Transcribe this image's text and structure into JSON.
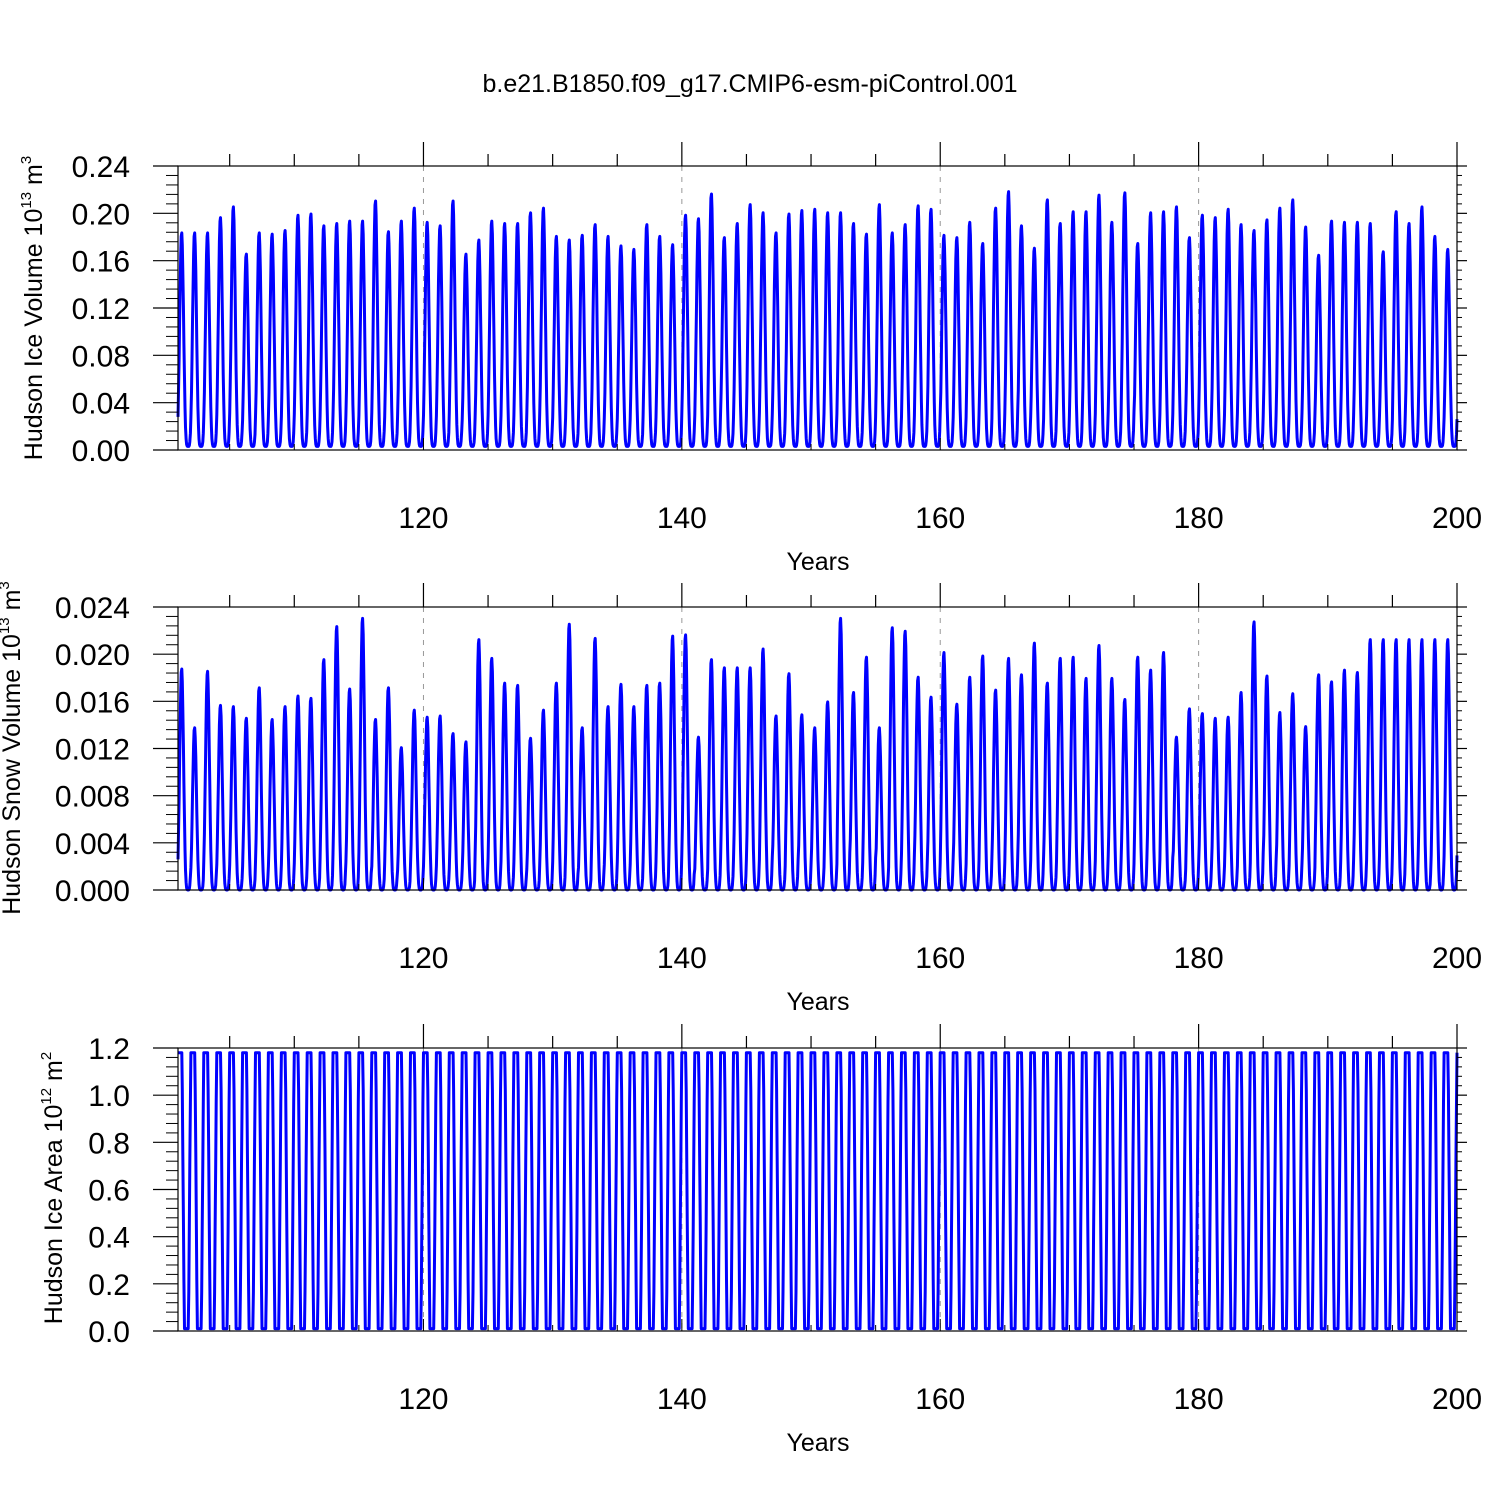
{
  "figure": {
    "title": "b.e21.B1850.f09_g17.CMIP6-esm-piControl.001"
  },
  "chart_data": [
    {
      "type": "line",
      "ylabel_parts": [
        "Hudson Ice Volume 10",
        "13",
        " m",
        "3"
      ],
      "xlabel": "Years",
      "xlim": [
        101,
        200
      ],
      "ylim": [
        0,
        0.24
      ],
      "x_ticks": [
        120,
        140,
        160,
        180,
        200
      ],
      "y_ticks": [
        "0.00",
        "0.04",
        "0.08",
        "0.12",
        "0.16",
        "0.20",
        "0.24"
      ],
      "grid": "dashed vertical lines at 120, 140, 160, 180",
      "series": [
        {
          "color": "#0000ff",
          "annual_min": 0.003,
          "annual_max": [
            0.184,
            0.184,
            0.184,
            0.197,
            0.206,
            0.166,
            0.184,
            0.183,
            0.186,
            0.199,
            0.2,
            0.19,
            0.192,
            0.194,
            0.194,
            0.211,
            0.185,
            0.194,
            0.205,
            0.193,
            0.19,
            0.211,
            0.166,
            0.178,
            0.194,
            0.192,
            0.192,
            0.201,
            0.205,
            0.181,
            0.178,
            0.182,
            0.191,
            0.181,
            0.173,
            0.17,
            0.191,
            0.181,
            0.174,
            0.199,
            0.196,
            0.217,
            0.18,
            0.192,
            0.208,
            0.201,
            0.184,
            0.2,
            0.203,
            0.204,
            0.201,
            0.201,
            0.192,
            0.183,
            0.208,
            0.184,
            0.191,
            0.207,
            0.204,
            0.182,
            0.18,
            0.193,
            0.175,
            0.205,
            0.219,
            0.19,
            0.171,
            0.212,
            0.192,
            0.202,
            0.202,
            0.216,
            0.193,
            0.218,
            0.175,
            0.201,
            0.202,
            0.206,
            0.18,
            0.199,
            0.197,
            0.204,
            0.191,
            0.186,
            0.195,
            0.205,
            0.212,
            0.189,
            0.165,
            0.194,
            0.193,
            0.193,
            0.192,
            0.168,
            0.202,
            0.192,
            0.206,
            0.181,
            0.17
          ]
        }
      ]
    },
    {
      "type": "line",
      "ylabel_parts": [
        "Hudson Snow Volume 10",
        "13",
        " m",
        "3"
      ],
      "xlabel": "Years",
      "xlim": [
        101,
        200
      ],
      "ylim": [
        0,
        0.024
      ],
      "x_ticks": [
        120,
        140,
        160,
        180,
        200
      ],
      "y_ticks": [
        "0.000",
        "0.004",
        "0.008",
        "0.012",
        "0.016",
        "0.020",
        "0.024"
      ],
      "grid": "dashed vertical lines at 120, 140, 160, 180",
      "series": [
        {
          "color": "#0000ff",
          "annual_min": 0.0,
          "annual_max": [
            0.0188,
            0.0138,
            0.0186,
            0.0157,
            0.0156,
            0.0146,
            0.0172,
            0.0145,
            0.0156,
            0.0165,
            0.0163,
            0.0196,
            0.0224,
            0.0171,
            0.0231,
            0.0145,
            0.0172,
            0.0121,
            0.0153,
            0.0147,
            0.0148,
            0.0133,
            0.0126,
            0.0213,
            0.0197,
            0.0176,
            0.0174,
            0.0129,
            0.0153,
            0.0176,
            0.0226,
            0.0138,
            0.0214,
            0.0156,
            0.0175,
            0.0156,
            0.0174,
            0.0176,
            0.0216,
            0.0217,
            0.013,
            0.0196,
            0.0189,
            0.0189,
            0.0189,
            0.0205,
            0.0148,
            0.0184,
            0.0149,
            0.0138,
            0.016,
            0.0231,
            0.0168,
            0.0198,
            0.0138,
            0.0223,
            0.022,
            0.0181,
            0.0164,
            0.0202,
            0.0158,
            0.0181,
            0.0199,
            0.017,
            0.0197,
            0.0183,
            0.021,
            0.0176,
            0.0197,
            0.0198,
            0.018,
            0.0208,
            0.018,
            0.0162,
            0.0198,
            0.0187,
            0.0202,
            0.013,
            0.0154,
            0.015,
            0.0146,
            0.0147,
            0.0168,
            0.0228,
            0.0182,
            0.0151,
            0.0167,
            0.0139,
            0.0183,
            0.0177,
            0.0187,
            0.0185,
            0.0213
          ]
        }
      ]
    },
    {
      "type": "line",
      "ylabel_parts": [
        "Hudson Ice Area 10",
        "12",
        " m",
        "2"
      ],
      "xlabel": "Years",
      "xlim": [
        101,
        200
      ],
      "ylim": [
        0,
        1.2
      ],
      "x_ticks": [
        120,
        140,
        160,
        180,
        200
      ],
      "y_ticks": [
        "0.0",
        "0.2",
        "0.4",
        "0.6",
        "0.8",
        "1.0",
        "1.2"
      ],
      "grid": "dashed vertical lines at 120, 140, 160, 180",
      "series": [
        {
          "color": "#0000ff",
          "annual_min": 0.01,
          "annual_max_constant": 1.18
        }
      ]
    }
  ]
}
